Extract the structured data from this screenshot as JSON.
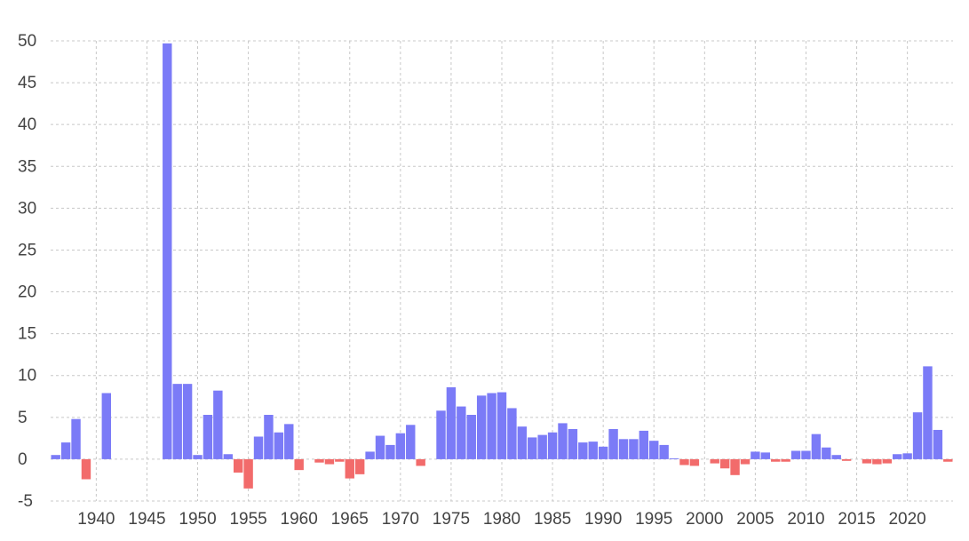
{
  "chart_data": {
    "type": "bar",
    "title": "",
    "xlabel": "",
    "ylabel": "",
    "ylim": [
      -5,
      50
    ],
    "xlim": [
      1935.5,
      2024.5
    ],
    "grid": true,
    "legend": "none",
    "colors": {
      "positive": "#7b7bf7",
      "negative": "#f26b6b",
      "grid": "#c8c8c8",
      "text": "#444444"
    },
    "y_ticks": [
      -5,
      0,
      5,
      10,
      15,
      20,
      25,
      30,
      35,
      40,
      45,
      50
    ],
    "y_tick_labels": [
      "-5",
      "0",
      "5",
      "10",
      "15",
      "20",
      "25",
      "30",
      "35",
      "40",
      "45",
      "50"
    ],
    "x_ticks": [
      1940,
      1945,
      1950,
      1955,
      1960,
      1965,
      1970,
      1975,
      1980,
      1985,
      1990,
      1995,
      2000,
      2005,
      2010,
      2015,
      2020
    ],
    "x_tick_labels": [
      "1940",
      "1945",
      "1950",
      "1955",
      "1960",
      "1965",
      "1970",
      "1975",
      "1980",
      "1985",
      "1990",
      "1995",
      "2000",
      "2005",
      "2010",
      "2015",
      "2020"
    ],
    "x": [
      1936,
      1937,
      1938,
      1939,
      1940,
      1941,
      1942,
      1943,
      1944,
      1945,
      1946,
      1947,
      1948,
      1949,
      1950,
      1951,
      1952,
      1953,
      1954,
      1955,
      1956,
      1957,
      1958,
      1959,
      1960,
      1961,
      1962,
      1963,
      1964,
      1965,
      1966,
      1967,
      1968,
      1969,
      1970,
      1971,
      1972,
      1973,
      1974,
      1975,
      1976,
      1977,
      1978,
      1979,
      1980,
      1981,
      1982,
      1983,
      1984,
      1985,
      1986,
      1987,
      1988,
      1989,
      1990,
      1991,
      1992,
      1993,
      1994,
      1995,
      1996,
      1997,
      1998,
      1999,
      2000,
      2001,
      2002,
      2003,
      2004,
      2005,
      2006,
      2007,
      2008,
      2009,
      2010,
      2011,
      2012,
      2013,
      2014,
      2015,
      2016,
      2017,
      2018,
      2019,
      2020,
      2021,
      2022,
      2023,
      2024
    ],
    "values": [
      0.5,
      2.0,
      4.8,
      -2.4,
      0,
      7.9,
      0,
      0,
      0,
      0,
      0,
      49.7,
      9.0,
      9.0,
      0.5,
      5.3,
      8.2,
      0.6,
      -1.6,
      -3.5,
      2.7,
      5.3,
      3.2,
      4.2,
      -1.3,
      0,
      -0.4,
      -0.6,
      -0.3,
      -2.3,
      -1.8,
      0.9,
      2.8,
      1.7,
      3.1,
      4.1,
      -0.8,
      0,
      5.8,
      8.6,
      6.3,
      5.3,
      7.6,
      7.9,
      8.0,
      6.1,
      3.9,
      2.6,
      2.9,
      3.2,
      4.3,
      3.6,
      2.0,
      2.1,
      1.5,
      3.6,
      2.4,
      2.4,
      3.4,
      2.2,
      1.7,
      0.1,
      -0.7,
      -0.8,
      0,
      -0.5,
      -1.1,
      -1.9,
      -0.6,
      0.9,
      0.8,
      -0.3,
      -0.3,
      1.0,
      1.0,
      3.0,
      1.4,
      0.5,
      -0.2,
      0,
      -0.5,
      -0.6,
      -0.5,
      0.6,
      0.7,
      5.6,
      11.1,
      3.5,
      -0.3
    ]
  }
}
